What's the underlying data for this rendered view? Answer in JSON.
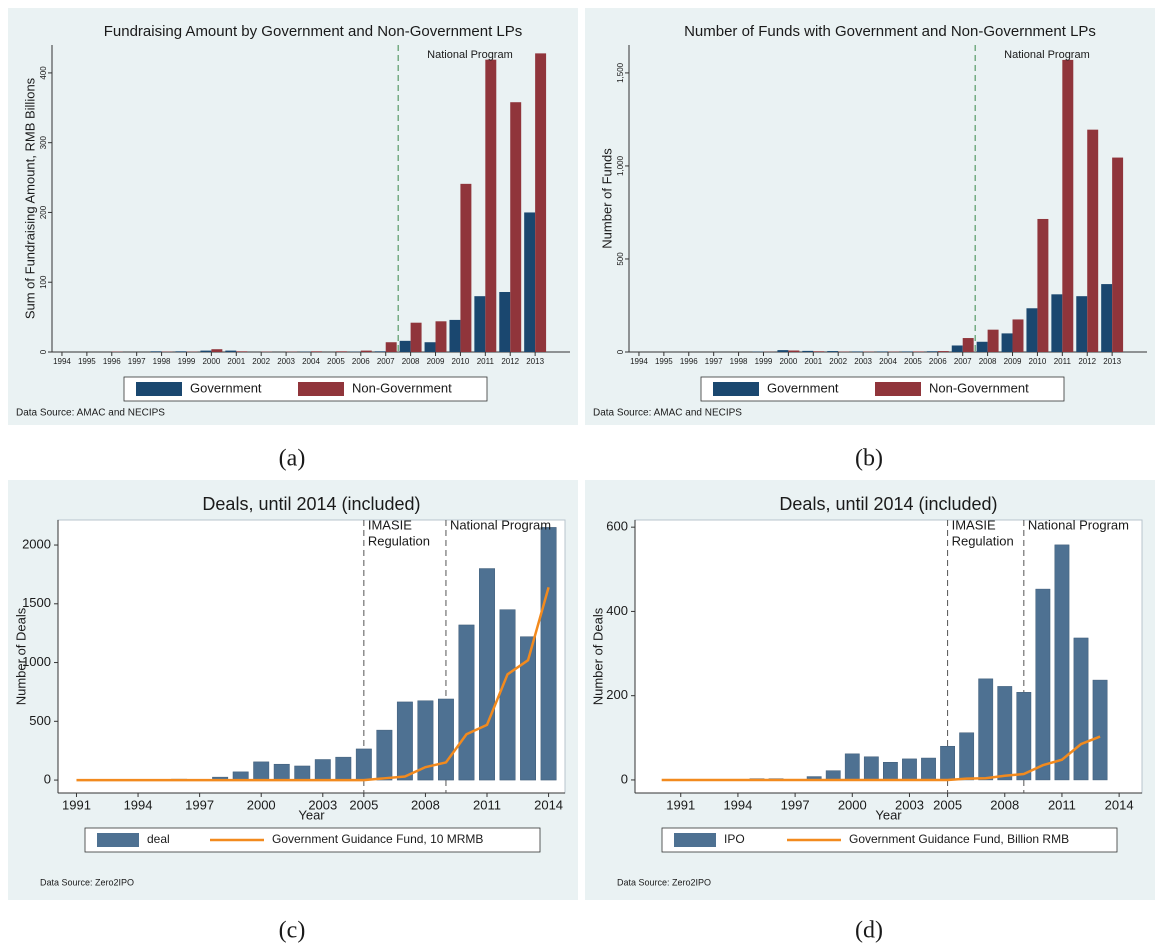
{
  "chart_data": [
    {
      "type": "bar",
      "title": "Fundraising Amount by Government and Non-Government LPs",
      "caption": "(a)",
      "source": "Data Source: AMAC and NECIPS",
      "ylabel": "Sum of Fundraising Amount, RMB Billions",
      "x": [
        1994,
        1995,
        1996,
        1997,
        1998,
        1999,
        2000,
        2001,
        2002,
        2003,
        2004,
        2005,
        2006,
        2007,
        2008,
        2009,
        2010,
        2011,
        2012,
        2013
      ],
      "xticks": [
        1994,
        1995,
        1996,
        1997,
        1998,
        1999,
        2000,
        2001,
        2002,
        2003,
        2004,
        2005,
        2006,
        2007,
        2008,
        2009,
        2010,
        2011,
        2012,
        2013
      ],
      "xlim": [
        1993.6,
        2014.4
      ],
      "ylim": [
        0,
        440
      ],
      "yticks": [
        0,
        100,
        200,
        300,
        400
      ],
      "series": [
        {
          "name": "Government",
          "color": "#1a476f",
          "values": [
            0,
            0,
            0,
            0,
            1,
            1,
            2,
            2,
            0,
            0,
            0.5,
            0,
            0.5,
            1,
            16,
            14,
            46,
            80,
            86,
            200
          ]
        },
        {
          "name": "Non-Government",
          "color": "#90353b",
          "values": [
            0,
            0,
            0.5,
            0,
            0.5,
            0.5,
            4,
            1,
            0.5,
            0.5,
            1,
            1,
            2,
            14,
            42,
            44,
            241,
            419,
            358,
            428
          ]
        }
      ],
      "annotations": [
        {
          "x": 2007.5,
          "text": [
            "National Program"
          ]
        }
      ],
      "annotation_color": "#993399",
      "annotation_line_color": "#3b8a4a"
    },
    {
      "type": "bar",
      "title": "Number of Funds with Government and Non-Government LPs",
      "caption": "(b)",
      "source": "Data Source: AMAC and NECIPS",
      "ylabel": "Number of Funds",
      "x": [
        1994,
        1995,
        1996,
        1997,
        1998,
        1999,
        2000,
        2001,
        2002,
        2003,
        2004,
        2005,
        2006,
        2007,
        2008,
        2009,
        2010,
        2011,
        2012,
        2013
      ],
      "xticks": [
        1994,
        1995,
        1996,
        1997,
        1998,
        1999,
        2000,
        2001,
        2002,
        2003,
        2004,
        2005,
        2006,
        2007,
        2008,
        2009,
        2010,
        2011,
        2012,
        2013
      ],
      "xlim": [
        1993.6,
        2014.4
      ],
      "ylim": [
        0,
        1650
      ],
      "yticks": [
        0,
        500,
        {
          "value": 1000,
          "label": "1,000"
        },
        {
          "value": 1500,
          "label": "1,500"
        }
      ],
      "series": [
        {
          "name": "Government",
          "color": "#1a476f",
          "values": [
            0,
            0,
            0,
            0,
            0,
            2,
            10,
            6,
            5,
            3,
            3,
            3,
            4,
            35,
            55,
            100,
            235,
            310,
            300,
            365
          ]
        },
        {
          "name": "Non-Government",
          "color": "#90353b",
          "values": [
            0,
            0,
            0,
            0,
            0,
            1,
            8,
            4,
            2,
            2,
            2,
            3,
            5,
            75,
            120,
            175,
            715,
            1570,
            1195,
            1045
          ]
        }
      ],
      "annotations": [
        {
          "x": 2007.5,
          "text": [
            "National Program"
          ]
        }
      ],
      "annotation_color": "#993399",
      "annotation_line_color": "#3b8a4a"
    },
    {
      "type": "combo",
      "title": "Deals, until 2014 (included)",
      "caption": "(c)",
      "source": "Data Source: Zero2IPO",
      "ylabel": "Number of Deals",
      "xlabel": "Year",
      "x": [
        1991,
        1992,
        1993,
        1994,
        1995,
        1996,
        1997,
        1998,
        1999,
        2000,
        2001,
        2002,
        2003,
        2004,
        2005,
        2006,
        2007,
        2008,
        2009,
        2010,
        2011,
        2012,
        2013,
        2014
      ],
      "xticks": [
        1991,
        1994,
        1997,
        2000,
        2003,
        2005,
        2008,
        2011,
        2014
      ],
      "xlim": [
        1990.1,
        2014.8
      ],
      "ylim": [
        -110,
        2213
      ],
      "yticks": [
        0,
        500,
        1000,
        1500,
        2000
      ],
      "series": [
        {
          "name": "deal",
          "mark": "bar",
          "color": "#4e7192",
          "values": [
            0,
            0,
            0,
            0,
            0,
            8,
            5,
            25,
            70,
            155,
            135,
            120,
            175,
            195,
            265,
            425,
            665,
            675,
            690,
            1320,
            1800,
            1450,
            1220,
            2150
          ]
        },
        {
          "name": "Government Guidance Fund, 10 MRMB",
          "mark": "line",
          "color": "#f28a1e",
          "values": [
            0,
            0,
            0,
            0,
            0,
            0,
            0,
            0,
            0,
            0,
            0,
            0,
            0,
            0,
            0,
            15,
            30,
            110,
            150,
            390,
            470,
            900,
            1020,
            1640
          ]
        }
      ],
      "annotations": [
        {
          "x": 2005,
          "text": [
            "IMASIE",
            "Regulation"
          ]
        },
        {
          "x": 2009,
          "text": [
            "National Program"
          ]
        }
      ],
      "annotation_color": "#8b1a8b",
      "annotation_line_color": "#555555"
    },
    {
      "type": "combo",
      "title": "Deals, until 2014 (included)",
      "caption": "(d)",
      "source": "Data Source: Zero2IPO",
      "ylabel": "Number of Deals",
      "xlabel": "Year",
      "x": [
        1990,
        1991,
        1992,
        1993,
        1994,
        1995,
        1996,
        1997,
        1998,
        1999,
        2000,
        2001,
        2002,
        2003,
        2004,
        2005,
        2006,
        2007,
        2008,
        2009,
        2010,
        2011,
        2012,
        2013
      ],
      "xticks": [
        1991,
        1994,
        1997,
        2000,
        2003,
        2005,
        2008,
        2011,
        2014
      ],
      "xlim": [
        1988.6,
        2015.2
      ],
      "ylim": [
        -31,
        617
      ],
      "yticks": [
        0,
        200,
        400,
        600
      ],
      "series": [
        {
          "name": "IPO",
          "mark": "bar",
          "color": "#4e7192",
          "values": [
            0,
            0,
            0,
            0,
            0,
            3,
            3,
            0,
            8,
            22,
            62,
            55,
            42,
            50,
            52,
            80,
            112,
            240,
            222,
            208,
            453,
            558,
            337,
            237
          ]
        },
        {
          "name": "Government Guidance Fund, Billion RMB",
          "mark": "line",
          "color": "#f28a1e",
          "values": [
            0,
            0,
            0,
            0,
            0,
            0,
            0,
            0,
            0,
            0,
            0,
            0,
            0,
            0,
            0,
            0,
            3,
            4,
            10,
            14,
            35,
            48,
            85,
            103
          ]
        }
      ],
      "annotations": [
        {
          "x": 2005,
          "text": [
            "IMASIE",
            "Regulation"
          ]
        },
        {
          "x": 2009,
          "text": [
            "National Program"
          ]
        }
      ],
      "annotation_color": "#8b1a8b",
      "annotation_line_color": "#555555"
    }
  ]
}
